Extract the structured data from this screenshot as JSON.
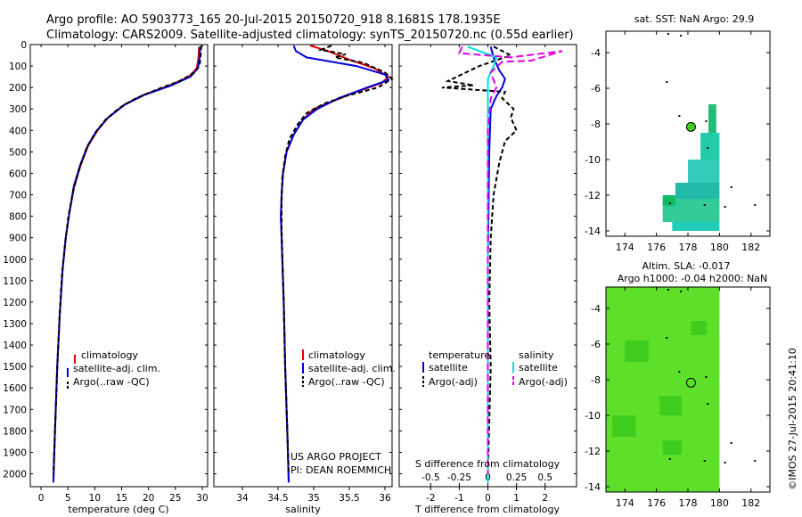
{
  "header": {
    "line1": "Argo profile: AO 5903773_165 20-Jul-2015 20150720_918 8.1681S 178.1935E",
    "line2": "Climatology: CARS2009. Satellite-adjusted climatology: synTS_20150720.nc (0.55d earlier)"
  },
  "colors": {
    "clim": "#e00000",
    "sat": "#0000e0",
    "argo": "#000000",
    "sal_sat": "#00e0e0",
    "sal_argo": "#e000e0"
  },
  "depth_ticks": [
    0,
    100,
    200,
    300,
    400,
    500,
    600,
    700,
    800,
    900,
    1000,
    1100,
    1200,
    1300,
    1400,
    1500,
    1600,
    1700,
    1800,
    1900,
    2000
  ],
  "chart_data": [
    {
      "type": "line",
      "id": "temperature",
      "xlabel": "temperature (deg C)",
      "ylabel": "depth",
      "xlim": [
        -2,
        31
      ],
      "ylim": [
        2060,
        0
      ],
      "xticks": [
        0,
        5,
        10,
        15,
        20,
        25,
        30
      ],
      "legend": [
        "climatology",
        "satellite-adj. clim.",
        "Argo(..raw -QC)"
      ],
      "series": [
        {
          "name": "climatology",
          "points": [
            [
              29.4,
              10
            ],
            [
              29.3,
              60
            ],
            [
              29.0,
              110
            ],
            [
              27.5,
              150
            ],
            [
              24,
              190
            ],
            [
              19,
              235
            ],
            [
              15.5,
              280
            ],
            [
              12.5,
              340
            ],
            [
              10.5,
              400
            ],
            [
              8.8,
              470
            ],
            [
              7.4,
              560
            ],
            [
              6.2,
              660
            ],
            [
              5.3,
              780
            ],
            [
              4.6,
              900
            ],
            [
              4.0,
              1050
            ],
            [
              3.5,
              1250
            ],
            [
              3.0,
              1500
            ],
            [
              2.6,
              1800
            ],
            [
              2.3,
              2040
            ]
          ]
        },
        {
          "name": "satellite-adj. clim.",
          "points": [
            [
              29.6,
              10
            ],
            [
              29.5,
              60
            ],
            [
              29.2,
              110
            ],
            [
              27.8,
              150
            ],
            [
              24.3,
              190
            ],
            [
              19.2,
              235
            ],
            [
              15.6,
              280
            ],
            [
              12.5,
              340
            ],
            [
              10.4,
              400
            ],
            [
              8.7,
              470
            ],
            [
              7.3,
              560
            ],
            [
              6.1,
              660
            ],
            [
              5.3,
              780
            ],
            [
              4.6,
              900
            ],
            [
              4.0,
              1050
            ],
            [
              3.5,
              1250
            ],
            [
              3.0,
              1500
            ],
            [
              2.6,
              1800
            ],
            [
              2.3,
              2040
            ]
          ]
        },
        {
          "name": "Argo(..raw -QC)",
          "points": [
            [
              29.8,
              5
            ],
            [
              29.7,
              50
            ],
            [
              29.5,
              95
            ],
            [
              28.6,
              130
            ],
            [
              25.8,
              170
            ],
            [
              21.5,
              210
            ],
            [
              17.3,
              255
            ],
            [
              14.6,
              295
            ],
            [
              12.0,
              350
            ],
            [
              10.1,
              410
            ],
            [
              8.5,
              480
            ],
            [
              7.2,
              570
            ],
            [
              6.0,
              680
            ],
            [
              5.1,
              800
            ],
            [
              4.5,
              920
            ],
            [
              3.9,
              1070
            ],
            [
              3.4,
              1280
            ],
            [
              3.0,
              1520
            ],
            [
              2.6,
              1800
            ],
            [
              2.3,
              2000
            ]
          ]
        }
      ]
    },
    {
      "type": "line",
      "id": "salinity",
      "xlabel": "salinity",
      "xlim": [
        33.6,
        36.1
      ],
      "ylim": [
        2060,
        0
      ],
      "xticks": [
        34,
        34.5,
        35,
        35.5,
        36
      ],
      "legend": [
        "climatology",
        "satellite-adj. clim.",
        "Argo(..raw -QC)"
      ],
      "series": [
        {
          "name": "climatology",
          "points": [
            [
              34.95,
              5
            ],
            [
              35.2,
              30
            ],
            [
              35.5,
              70
            ],
            [
              35.85,
              110
            ],
            [
              36.05,
              150
            ],
            [
              35.95,
              180
            ],
            [
              35.6,
              220
            ],
            [
              35.3,
              260
            ],
            [
              35.0,
              300
            ],
            [
              34.85,
              350
            ],
            [
              34.72,
              420
            ],
            [
              34.62,
              500
            ],
            [
              34.57,
              600
            ],
            [
              34.55,
              700
            ],
            [
              34.54,
              800
            ],
            [
              34.55,
              900
            ],
            [
              34.56,
              1000
            ],
            [
              34.58,
              1200
            ],
            [
              34.6,
              1500
            ],
            [
              34.63,
              1800
            ],
            [
              34.65,
              2040
            ]
          ]
        },
        {
          "name": "satellite-adj. clim.",
          "points": [
            [
              34.72,
              5
            ],
            [
              34.75,
              30
            ],
            [
              34.9,
              60
            ],
            [
              35.6,
              100
            ],
            [
              36.0,
              140
            ],
            [
              36.05,
              165
            ],
            [
              35.75,
              200
            ],
            [
              35.35,
              250
            ],
            [
              35.05,
              300
            ],
            [
              34.85,
              350
            ],
            [
              34.72,
              420
            ],
            [
              34.62,
              500
            ],
            [
              34.57,
              600
            ],
            [
              34.55,
              700
            ],
            [
              34.54,
              800
            ],
            [
              34.55,
              900
            ],
            [
              34.56,
              1000
            ],
            [
              34.58,
              1200
            ],
            [
              34.6,
              1500
            ],
            [
              34.63,
              1800
            ],
            [
              34.65,
              2040
            ]
          ]
        },
        {
          "name": "Argo(..raw -QC)",
          "points": [
            [
              35.25,
              5
            ],
            [
              35.1,
              25
            ],
            [
              35.45,
              45
            ],
            [
              35.3,
              60
            ],
            [
              35.7,
              85
            ],
            [
              36.0,
              130
            ],
            [
              36.1,
              160
            ],
            [
              35.9,
              200
            ],
            [
              35.45,
              240
            ],
            [
              35.15,
              275
            ],
            [
              34.9,
              320
            ],
            [
              34.78,
              370
            ],
            [
              34.66,
              440
            ],
            [
              34.6,
              520
            ],
            [
              34.56,
              620
            ],
            [
              34.55,
              740
            ],
            [
              34.55,
              860
            ],
            [
              34.56,
              980
            ],
            [
              34.58,
              1200
            ],
            [
              34.6,
              1500
            ],
            [
              34.63,
              1800
            ],
            [
              34.65,
              2000
            ]
          ]
        }
      ]
    },
    {
      "type": "line",
      "id": "difference",
      "xlabel": "T difference from climatology",
      "xlabel_top": "S difference from climatology",
      "xlim": [
        -3.1,
        3.1
      ],
      "ylim": [
        2060,
        0
      ],
      "xticks": [
        -2,
        -1,
        0,
        1,
        2
      ],
      "sticks_labels": [
        "-0.5",
        "-0.25",
        "0",
        "0.25",
        "0.5"
      ],
      "legend_titles": [
        "temperature",
        "salinity"
      ],
      "legend": [
        "satellite",
        "Argo(-adj)",
        "satellite",
        "Argo(-adj)"
      ],
      "series": [
        {
          "name": "temperature satellite",
          "points": [
            [
              0.1,
              10
            ],
            [
              0.2,
              60
            ],
            [
              0.4,
              120
            ],
            [
              0.6,
              160
            ],
            [
              0.5,
              200
            ],
            [
              0.3,
              240
            ],
            [
              0.1,
              300
            ],
            [
              0.05,
              500
            ],
            [
              0.0,
              1000
            ],
            [
              0.0,
              2040
            ]
          ]
        },
        {
          "name": "temperature Argo(-adj)",
          "points": [
            [
              0.2,
              10
            ],
            [
              0.8,
              50
            ],
            [
              -0.3,
              100
            ],
            [
              -1.4,
              170
            ],
            [
              -0.5,
              190
            ],
            [
              -1.6,
              200
            ],
            [
              0.6,
              220
            ],
            [
              0.5,
              250
            ],
            [
              0.9,
              300
            ],
            [
              0.8,
              340
            ],
            [
              1.0,
              400
            ],
            [
              0.6,
              450
            ],
            [
              0.4,
              550
            ],
            [
              0.2,
              700
            ],
            [
              0.1,
              900
            ],
            [
              0.05,
              1200
            ],
            [
              0.1,
              1500
            ],
            [
              0.0,
              2000
            ]
          ]
        },
        {
          "name": "salinity satellite",
          "points": [
            [
              -0.7,
              10
            ],
            [
              0.3,
              60
            ],
            [
              0.2,
              100
            ],
            [
              0.0,
              160
            ],
            [
              0.0,
              300
            ],
            [
              0.0,
              1000
            ],
            [
              0.0,
              2040
            ]
          ]
        },
        {
          "name": "salinity Argo(-adj)",
          "points": [
            [
              -0.9,
              10
            ],
            [
              -1.0,
              40
            ],
            [
              0.8,
              60
            ],
            [
              2.6,
              30
            ],
            [
              1.5,
              75
            ],
            [
              0.5,
              80
            ],
            [
              0.1,
              130
            ],
            [
              0.3,
              200
            ],
            [
              0.1,
              250
            ],
            [
              0.0,
              400
            ],
            [
              0.0,
              1000
            ],
            [
              0.0,
              2000
            ]
          ]
        }
      ]
    }
  ],
  "maps": {
    "sst_title": "sat. SST: NaN Argo: 29.9",
    "sla_title1": "Altim. SLA: -0.017",
    "sla_title2": "Argo h1000: -0.04 h2000: NaN",
    "xticks": [
      174,
      176,
      178,
      180,
      182
    ],
    "yticks": [
      -4,
      -6,
      -8,
      -10,
      -12,
      -14
    ],
    "lon_range": [
      172.8,
      183.2
    ],
    "lat_range": [
      -14.3,
      -2.8
    ],
    "float_position": [
      178.1935,
      -8.1681
    ]
  },
  "annotations": {
    "project": "US ARGO PROJECT",
    "pi": "PI: DEAN ROEMMICH",
    "credit": "©IMOS 27-Jul-2015 20:41:10"
  }
}
